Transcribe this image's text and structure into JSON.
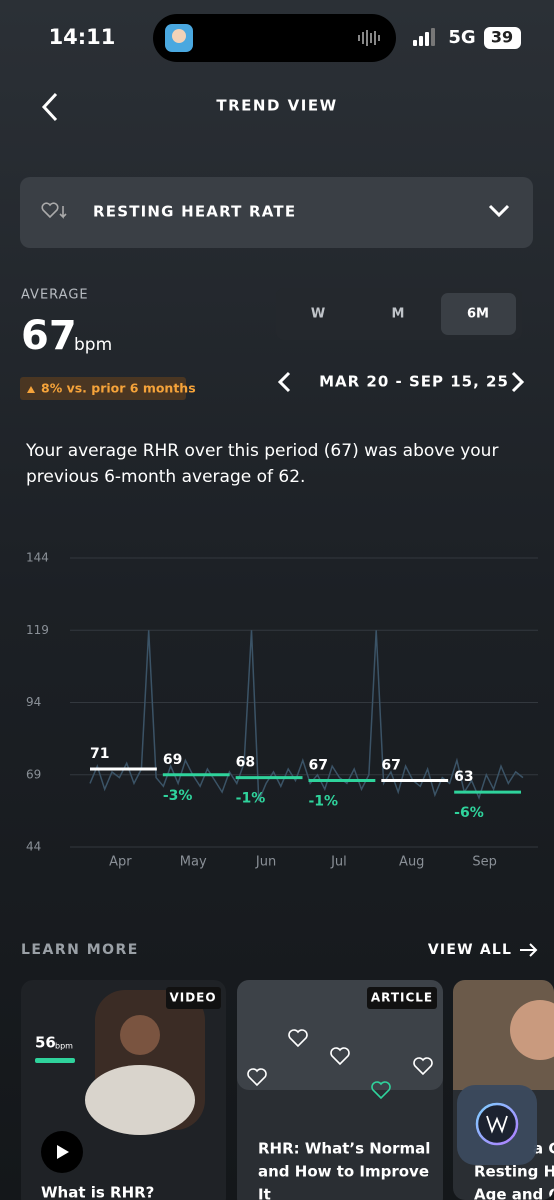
{
  "status_bar": {
    "time": "14:11",
    "network": "5G",
    "battery": "39"
  },
  "header": {
    "title": "TREND VIEW"
  },
  "metric_selector": {
    "label": "RESTING HEART RATE"
  },
  "summary": {
    "label": "AVERAGE",
    "value": "67",
    "unit": "bpm",
    "change": "8% vs. prior 6 months"
  },
  "period_tabs": {
    "tabs": [
      "W",
      "M",
      "6M"
    ],
    "selected": 2
  },
  "date_range": "MAR 20 - SEP 15, 25",
  "description": [
    "Your average RHR over this period (67) was above your",
    "previous 6-month average of 62."
  ],
  "chart": {
    "type": "line",
    "ylim": [
      44,
      144
    ],
    "yticks": [
      44,
      69,
      94,
      119,
      144
    ],
    "months": [
      "Apr",
      "May",
      "Jun",
      "Jul",
      "Aug",
      "Sep"
    ],
    "daily": [
      66,
      72,
      64,
      70,
      68,
      73,
      66,
      71,
      119,
      68,
      65,
      72,
      66,
      74,
      69,
      65,
      71,
      67,
      63,
      70,
      66,
      73,
      119,
      60,
      66,
      70,
      65,
      71,
      67,
      74,
      66,
      69,
      64,
      72,
      68,
      66,
      71,
      64,
      69,
      119,
      66,
      70,
      63,
      72,
      67,
      65,
      71,
      62,
      68,
      66,
      74,
      63,
      67,
      61,
      69,
      64,
      72,
      66,
      70,
      68
    ],
    "daily_color": "#3b5366",
    "monthly_averages": [
      71,
      69,
      68,
      67,
      67,
      63
    ],
    "monthly_changes": [
      null,
      -3,
      -1,
      -1,
      null,
      -6
    ],
    "monthly_change_labels": [
      null,
      "-3%",
      "-1%",
      "-1%",
      null,
      "-6%"
    ],
    "average_colors": [
      "#ffffff",
      "#2fd39c",
      "#2fd39c",
      "#2fd39c",
      "#ffffff",
      "#2fd39c"
    ]
  },
  "learn_more": {
    "title": "LEARN MORE",
    "action": "VIEW ALL",
    "cards": [
      {
        "tag": "VIDEO",
        "title_lines": [
          "What is RHR?"
        ],
        "thumb_value": "56",
        "thumb_unit": "bpm"
      },
      {
        "tag": "ARTICLE",
        "title_lines": [
          "RHR: What’s Normal",
          "and How to Improve",
          "It"
        ]
      },
      {
        "title_lines": [
          "a G",
          "Resting He",
          "Age and G"
        ]
      }
    ]
  }
}
